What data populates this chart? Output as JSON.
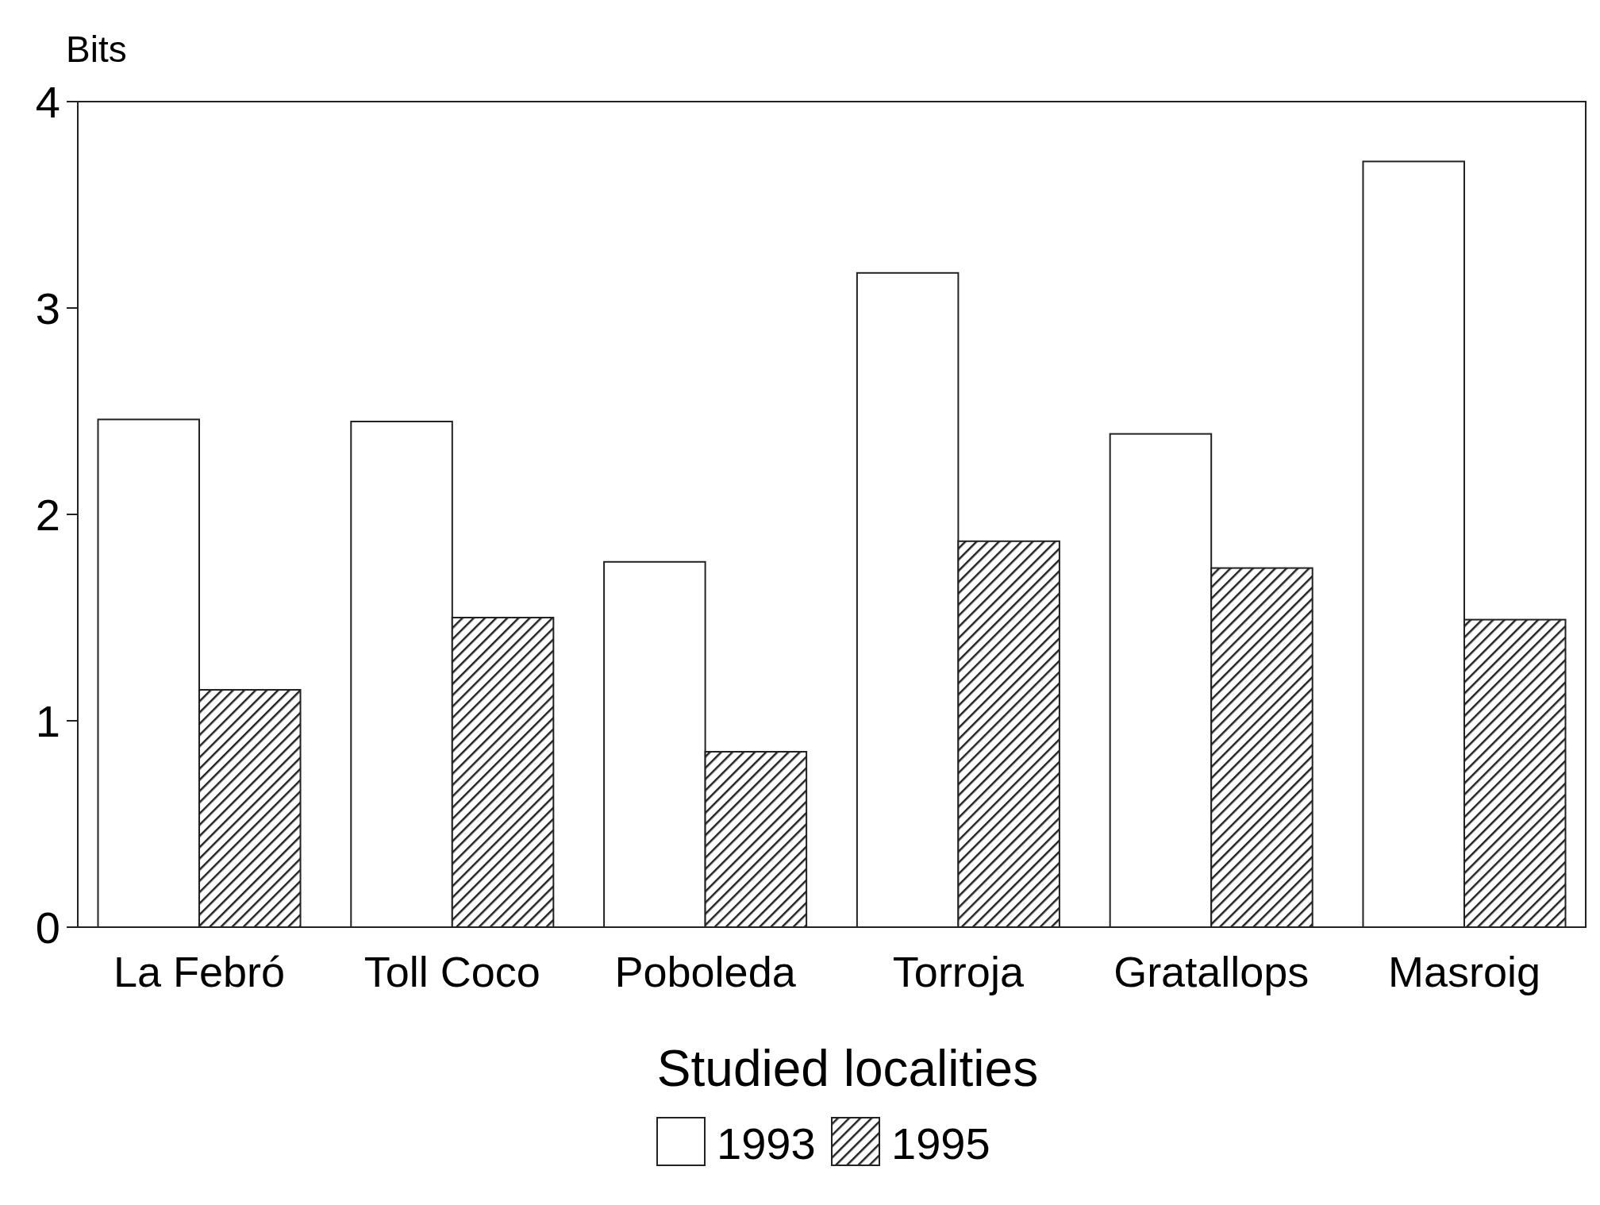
{
  "chart_data": {
    "type": "bar",
    "ylabel": "Bits",
    "xlabel": "Studied localities",
    "categories": [
      "La Febró",
      "Toll Coco",
      "Poboleda",
      "Torroja",
      "Gratallops",
      "Masroig"
    ],
    "series": [
      {
        "name": "1993",
        "color": "#ffffff",
        "values": [
          2.46,
          2.45,
          1.77,
          3.17,
          2.39,
          3.71
        ]
      },
      {
        "name": "1995",
        "color": "#222222",
        "values": [
          1.15,
          1.5,
          0.85,
          1.87,
          1.74,
          1.49
        ]
      }
    ],
    "ylim": [
      0,
      4
    ],
    "yticks": [
      0,
      1,
      2,
      3,
      4
    ],
    "grid": false,
    "legend": "bottom"
  }
}
